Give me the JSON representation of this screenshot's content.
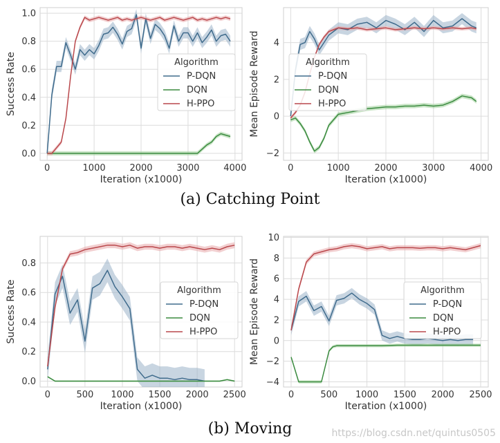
{
  "captions": {
    "a": "(a)  Catching Point",
    "b": "(b)  Moving"
  },
  "watermark": "https://blog.csdn.net/quintus0505",
  "colors": {
    "pdqn": "#3f6b8c",
    "dqn": "#3a8a3f",
    "hppo": "#b9474b",
    "pdqn_band": "#9bb3c9",
    "dqn_band": "#9fcf99",
    "hppo_band": "#e8a7aa",
    "grid": "#dcdcdc",
    "axis_bg": "#ffffff",
    "text": "#333333"
  },
  "legend": {
    "title": "Algorithm",
    "entries": [
      "P-DQN",
      "DQN",
      "H-PPO"
    ]
  },
  "chart_data": [
    {
      "type": "line",
      "title": "",
      "xlabel": "Iteration (x1000)",
      "ylabel": "Success Rate",
      "xlim": [
        -150,
        4150
      ],
      "ylim": [
        -0.05,
        1.04
      ],
      "xticks": [
        0,
        1000,
        2000,
        3000,
        4000
      ],
      "yticks": [
        0.0,
        0.2,
        0.4,
        0.6,
        0.8,
        1.0
      ],
      "ytick_labels": [
        "0.0",
        "0.2",
        "0.4",
        "0.6",
        "0.8",
        "1.0"
      ],
      "legend_position": "center-right",
      "series": [
        {
          "name": "P-DQN",
          "band": 0.04,
          "x": [
            0,
            100,
            200,
            300,
            400,
            500,
            600,
            700,
            800,
            900,
            1000,
            1100,
            1200,
            1300,
            1400,
            1500,
            1600,
            1700,
            1800,
            1900,
            2000,
            2100,
            2200,
            2300,
            2400,
            2500,
            2600,
            2700,
            2800,
            2900,
            3000,
            3100,
            3200,
            3300,
            3400,
            3500,
            3600,
            3700,
            3800,
            3900
          ],
          "y": [
            0.0,
            0.42,
            0.62,
            0.62,
            0.79,
            0.7,
            0.6,
            0.74,
            0.7,
            0.74,
            0.71,
            0.77,
            0.85,
            0.86,
            0.9,
            0.85,
            0.78,
            0.87,
            0.89,
            0.99,
            0.75,
            0.96,
            0.82,
            0.92,
            0.89,
            0.84,
            0.75,
            0.91,
            0.8,
            0.86,
            0.86,
            0.8,
            0.86,
            0.79,
            0.83,
            0.88,
            0.8,
            0.84,
            0.85,
            0.8
          ]
        },
        {
          "name": "DQN",
          "band": 0.015,
          "x": [
            0,
            500,
            1000,
            1500,
            2000,
            2500,
            3000,
            3200,
            3300,
            3400,
            3500,
            3600,
            3700,
            3800,
            3900
          ],
          "y": [
            0.0,
            0.0,
            0.0,
            0.0,
            0.0,
            0.0,
            0.0,
            0.0,
            0.03,
            0.06,
            0.08,
            0.12,
            0.14,
            0.13,
            0.12
          ]
        },
        {
          "name": "H-PPO",
          "band": 0.015,
          "x": [
            0,
            100,
            200,
            300,
            400,
            500,
            600,
            700,
            800,
            900,
            1000,
            1100,
            1200,
            1300,
            1400,
            1500,
            1600,
            1700,
            1800,
            1900,
            2000,
            2100,
            2200,
            2300,
            2400,
            2500,
            2600,
            2700,
            2800,
            2900,
            3000,
            3100,
            3200,
            3300,
            3400,
            3500,
            3600,
            3700,
            3800,
            3900
          ],
          "y": [
            0.0,
            0.0,
            0.04,
            0.08,
            0.25,
            0.55,
            0.8,
            0.9,
            0.97,
            0.95,
            0.96,
            0.97,
            0.96,
            0.95,
            0.96,
            0.97,
            0.95,
            0.96,
            0.95,
            0.96,
            0.97,
            0.96,
            0.95,
            0.96,
            0.97,
            0.95,
            0.96,
            0.97,
            0.96,
            0.95,
            0.96,
            0.97,
            0.95,
            0.96,
            0.95,
            0.96,
            0.97,
            0.96,
            0.97,
            0.96
          ]
        }
      ]
    },
    {
      "type": "line",
      "title": "",
      "xlabel": "Iteration (x1000)",
      "ylabel": "Mean Episode Reward",
      "xlim": [
        -150,
        4150
      ],
      "ylim": [
        -2.4,
        5.9
      ],
      "xticks": [
        0,
        1000,
        2000,
        3000,
        4000
      ],
      "yticks": [
        -2,
        0,
        2,
        4
      ],
      "ytick_labels": [
        "−2",
        "0",
        "2",
        "4"
      ],
      "legend_position": "center-left",
      "series": [
        {
          "name": "P-DQN",
          "band": 0.3,
          "x": [
            0,
            100,
            200,
            300,
            400,
            500,
            600,
            700,
            800,
            900,
            1000,
            1200,
            1400,
            1600,
            1800,
            2000,
            2200,
            2400,
            2600,
            2800,
            3000,
            3200,
            3400,
            3600,
            3800,
            3900
          ],
          "y": [
            0.0,
            2.5,
            3.9,
            4.0,
            4.6,
            4.2,
            3.6,
            4.0,
            4.4,
            4.6,
            4.8,
            4.7,
            5.0,
            5.1,
            4.8,
            5.2,
            5.0,
            4.7,
            5.1,
            4.6,
            5.2,
            4.8,
            4.9,
            5.3,
            4.9,
            4.8
          ]
        },
        {
          "name": "DQN",
          "band": 0.12,
          "x": [
            0,
            100,
            200,
            300,
            400,
            500,
            600,
            700,
            800,
            900,
            1000,
            1200,
            1400,
            1600,
            1800,
            2000,
            2200,
            2400,
            2600,
            2800,
            3000,
            3200,
            3400,
            3600,
            3800,
            3900
          ],
          "y": [
            -0.2,
            -0.1,
            -0.4,
            -0.8,
            -1.4,
            -1.9,
            -1.7,
            -1.2,
            -0.5,
            -0.2,
            0.1,
            0.2,
            0.3,
            0.4,
            0.45,
            0.5,
            0.5,
            0.55,
            0.55,
            0.6,
            0.55,
            0.6,
            0.8,
            1.1,
            1.0,
            0.8
          ]
        },
        {
          "name": "H-PPO",
          "band": 0.1,
          "x": [
            0,
            100,
            200,
            300,
            400,
            500,
            600,
            700,
            800,
            900,
            1000,
            1200,
            1400,
            1600,
            1800,
            2000,
            2200,
            2400,
            2600,
            2800,
            3000,
            3200,
            3400,
            3600,
            3800,
            3900
          ],
          "y": [
            -0.1,
            0.2,
            0.6,
            1.3,
            2.3,
            3.2,
            3.9,
            4.3,
            4.6,
            4.7,
            4.8,
            4.75,
            4.8,
            4.7,
            4.75,
            4.8,
            4.7,
            4.75,
            4.8,
            4.75,
            4.8,
            4.75,
            4.8,
            4.75,
            4.8,
            4.75
          ]
        }
      ]
    },
    {
      "type": "line",
      "title": "",
      "xlabel": "Iteration (x1000)",
      "ylabel": "Success Rate",
      "xlim": [
        -100,
        2600
      ],
      "ylim": [
        -0.04,
        0.98
      ],
      "xticks": [
        0,
        500,
        1000,
        1500,
        2000,
        2500
      ],
      "yticks": [
        0.0,
        0.2,
        0.4,
        0.6,
        0.8
      ],
      "ytick_labels": [
        "0.0",
        "0.2",
        "0.4",
        "0.6",
        "0.8"
      ],
      "legend_position": "center-right",
      "series": [
        {
          "name": "P-DQN",
          "band": 0.08,
          "x": [
            0,
            100,
            200,
            300,
            400,
            500,
            600,
            700,
            800,
            900,
            1000,
            1100,
            1200,
            1300,
            1400,
            1500,
            1600,
            1700,
            1800,
            1900,
            2000,
            2100
          ],
          "y": [
            0.08,
            0.59,
            0.71,
            0.46,
            0.55,
            0.27,
            0.63,
            0.66,
            0.75,
            0.64,
            0.57,
            0.49,
            0.08,
            0.02,
            0.04,
            0.02,
            0.02,
            0.01,
            0.02,
            0.01,
            0.01,
            0.0
          ]
        },
        {
          "name": "DQN",
          "band": 0.005,
          "x": [
            0,
            100,
            200,
            500,
            1000,
            1500,
            2000,
            2300,
            2400,
            2500
          ],
          "y": [
            0.03,
            0.0,
            0.0,
            0.0,
            0.0,
            0.0,
            0.0,
            0.0,
            0.01,
            0.0
          ]
        },
        {
          "name": "H-PPO",
          "band": 0.02,
          "x": [
            0,
            100,
            200,
            300,
            400,
            500,
            600,
            700,
            800,
            900,
            1000,
            1100,
            1200,
            1300,
            1400,
            1500,
            1600,
            1700,
            1800,
            1900,
            2000,
            2100,
            2200,
            2300,
            2400,
            2500
          ],
          "y": [
            0.1,
            0.5,
            0.76,
            0.86,
            0.87,
            0.89,
            0.9,
            0.91,
            0.92,
            0.92,
            0.91,
            0.92,
            0.9,
            0.91,
            0.91,
            0.9,
            0.91,
            0.91,
            0.9,
            0.91,
            0.9,
            0.89,
            0.9,
            0.89,
            0.91,
            0.92
          ]
        }
      ]
    },
    {
      "type": "line",
      "title": "",
      "xlabel": "Iteration (x1000)",
      "ylabel": "Mean Episode Reward",
      "xlim": [
        -100,
        2600
      ],
      "ylim": [
        -4.5,
        10.1
      ],
      "xticks": [
        0,
        500,
        1000,
        1500,
        2000,
        2500
      ],
      "yticks": [
        -4,
        -2,
        0,
        2,
        4,
        6,
        8,
        10
      ],
      "ytick_labels": [
        "−4",
        "−2",
        "0",
        "2",
        "4",
        "6",
        "8",
        "10"
      ],
      "legend_position": "center-right",
      "series": [
        {
          "name": "P-DQN",
          "band": 0.5,
          "x": [
            0,
            100,
            200,
            300,
            400,
            500,
            600,
            700,
            800,
            900,
            1000,
            1100,
            1200,
            1300,
            1400,
            1500,
            1600,
            1700,
            1800,
            1900,
            2000,
            2100,
            2200,
            2300,
            2400
          ],
          "y": [
            1.0,
            3.8,
            4.3,
            2.9,
            3.3,
            1.9,
            3.9,
            4.1,
            4.6,
            4.0,
            3.6,
            3.0,
            0.5,
            0.2,
            0.4,
            0.2,
            0.1,
            0.1,
            0.2,
            0.1,
            0.0,
            0.1,
            0.0,
            0.1,
            0.1
          ]
        },
        {
          "name": "DQN",
          "band": 0.15,
          "x": [
            0,
            100,
            200,
            300,
            400,
            500,
            550,
            600,
            700,
            800,
            1000,
            1200,
            1400,
            1600,
            1800,
            2000,
            2200,
            2400,
            2500
          ],
          "y": [
            -1.6,
            -4.0,
            -4.0,
            -4.0,
            -4.0,
            -1.0,
            -0.6,
            -0.5,
            -0.5,
            -0.5,
            -0.5,
            -0.5,
            -0.45,
            -0.45,
            -0.45,
            -0.45,
            -0.45,
            -0.45,
            -0.45
          ]
        },
        {
          "name": "H-PPO",
          "band": 0.25,
          "x": [
            0,
            100,
            200,
            300,
            400,
            500,
            600,
            700,
            800,
            900,
            1000,
            1100,
            1200,
            1300,
            1400,
            1500,
            1600,
            1700,
            1800,
            1900,
            2000,
            2100,
            2200,
            2300,
            2400,
            2500
          ],
          "y": [
            1.0,
            5.0,
            7.6,
            8.4,
            8.6,
            8.8,
            8.9,
            9.1,
            9.2,
            9.1,
            8.9,
            9.0,
            9.1,
            8.9,
            9.0,
            9.0,
            9.0,
            8.95,
            9.0,
            9.0,
            8.9,
            9.0,
            8.9,
            8.8,
            9.0,
            9.2
          ]
        }
      ]
    }
  ]
}
